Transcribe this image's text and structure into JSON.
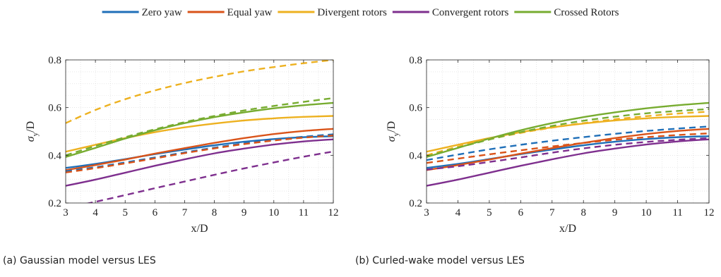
{
  "legend": {
    "placement": "top-center",
    "items": [
      {
        "label": "Zero yaw",
        "color": "#1f6fb8"
      },
      {
        "label": "Equal yaw",
        "color": "#d95319"
      },
      {
        "label": "Divergent rotors",
        "color": "#edb120"
      },
      {
        "label": "Convergent rotors",
        "color": "#7e2f8e"
      },
      {
        "label": "Crossed Rotors",
        "color": "#77ac30"
      }
    ]
  },
  "chart_data": [
    {
      "type": "line",
      "caption": "(a) Gaussian model versus LES",
      "xlabel": "x/D",
      "ylabel_main": "σ",
      "ylabel_sub": "y",
      "ylabel_suffix": "/D",
      "xlim": [
        3,
        12
      ],
      "ylim": [
        0.2,
        0.8
      ],
      "xticks": [
        3,
        4,
        5,
        6,
        7,
        8,
        9,
        10,
        11,
        12
      ],
      "yticks": [
        0.2,
        0.4,
        0.6,
        0.8
      ],
      "ytick_labels": [
        "0.2",
        "0.4",
        "0.6",
        "0.8"
      ],
      "grid": "minor-dotted",
      "x": [
        3,
        4,
        5,
        6,
        7,
        8,
        9,
        10,
        11,
        12
      ],
      "series": [
        {
          "legend": 0,
          "style": "solid",
          "values": [
            0.347,
            0.364,
            0.384,
            0.405,
            0.424,
            0.442,
            0.457,
            0.468,
            0.476,
            0.48
          ]
        },
        {
          "legend": 1,
          "style": "solid",
          "values": [
            0.338,
            0.359,
            0.382,
            0.407,
            0.43,
            0.452,
            0.472,
            0.489,
            0.502,
            0.511
          ]
        },
        {
          "legend": 2,
          "style": "solid",
          "values": [
            0.415,
            0.444,
            0.472,
            0.497,
            0.517,
            0.533,
            0.546,
            0.555,
            0.561,
            0.565
          ]
        },
        {
          "legend": 3,
          "style": "solid",
          "values": [
            0.272,
            0.298,
            0.327,
            0.356,
            0.383,
            0.408,
            0.428,
            0.445,
            0.458,
            0.467
          ]
        },
        {
          "legend": 4,
          "style": "solid",
          "values": [
            0.393,
            0.431,
            0.47,
            0.505,
            0.535,
            0.56,
            0.58,
            0.597,
            0.61,
            0.62
          ]
        },
        {
          "legend": 0,
          "style": "dashed",
          "values": [
            0.333,
            0.35,
            0.37,
            0.391,
            0.412,
            0.432,
            0.45,
            0.465,
            0.478,
            0.488
          ]
        },
        {
          "legend": 1,
          "style": "dashed",
          "values": [
            0.328,
            0.346,
            0.366,
            0.387,
            0.409,
            0.429,
            0.447,
            0.462,
            0.474,
            0.483
          ]
        },
        {
          "legend": 2,
          "style": "dashed",
          "values": [
            0.535,
            0.59,
            0.635,
            0.672,
            0.703,
            0.729,
            0.752,
            0.77,
            0.786,
            0.8
          ]
        },
        {
          "legend": 3,
          "style": "dashed",
          "values": [
            0.178,
            0.205,
            0.233,
            0.262,
            0.29,
            0.318,
            0.345,
            0.37,
            0.394,
            0.416
          ]
        },
        {
          "legend": 4,
          "style": "dashed",
          "values": [
            0.4,
            0.439,
            0.476,
            0.509,
            0.539,
            0.565,
            0.588,
            0.607,
            0.624,
            0.64
          ]
        }
      ]
    },
    {
      "type": "line",
      "caption": "(b) Curled-wake model versus LES",
      "xlabel": "x/D",
      "ylabel_main": "σ",
      "ylabel_sub": "y",
      "ylabel_suffix": "/D",
      "xlim": [
        3,
        12
      ],
      "ylim": [
        0.2,
        0.8
      ],
      "xticks": [
        3,
        4,
        5,
        6,
        7,
        8,
        9,
        10,
        11,
        12
      ],
      "yticks": [
        0.2,
        0.4,
        0.6,
        0.8
      ],
      "ytick_labels": [
        "0.2",
        "0.4",
        "0.6",
        "0.8"
      ],
      "grid": "minor-dotted",
      "x": [
        3,
        4,
        5,
        6,
        7,
        8,
        9,
        10,
        11,
        12
      ],
      "series": [
        {
          "legend": 0,
          "style": "solid",
          "values": [
            0.347,
            0.364,
            0.384,
            0.405,
            0.424,
            0.442,
            0.457,
            0.468,
            0.476,
            0.48
          ]
        },
        {
          "legend": 1,
          "style": "solid",
          "values": [
            0.338,
            0.359,
            0.382,
            0.407,
            0.43,
            0.452,
            0.472,
            0.489,
            0.502,
            0.511
          ]
        },
        {
          "legend": 2,
          "style": "solid",
          "values": [
            0.415,
            0.444,
            0.472,
            0.497,
            0.517,
            0.533,
            0.546,
            0.555,
            0.561,
            0.565
          ]
        },
        {
          "legend": 3,
          "style": "solid",
          "values": [
            0.272,
            0.298,
            0.327,
            0.356,
            0.383,
            0.408,
            0.428,
            0.445,
            0.458,
            0.467
          ]
        },
        {
          "legend": 4,
          "style": "solid",
          "values": [
            0.393,
            0.431,
            0.47,
            0.505,
            0.535,
            0.56,
            0.58,
            0.597,
            0.61,
            0.62
          ]
        },
        {
          "legend": 0,
          "style": "dashed",
          "values": [
            0.38,
            0.403,
            0.425,
            0.444,
            0.461,
            0.476,
            0.49,
            0.502,
            0.512,
            0.521
          ]
        },
        {
          "legend": 1,
          "style": "dashed",
          "values": [
            0.368,
            0.386,
            0.404,
            0.421,
            0.437,
            0.452,
            0.465,
            0.476,
            0.485,
            0.492
          ]
        },
        {
          "legend": 2,
          "style": "dashed",
          "values": [
            0.4,
            0.436,
            0.467,
            0.494,
            0.516,
            0.535,
            0.551,
            0.564,
            0.575,
            0.583
          ]
        },
        {
          "legend": 3,
          "style": "dashed",
          "values": [
            0.34,
            0.354,
            0.372,
            0.391,
            0.411,
            0.429,
            0.444,
            0.456,
            0.465,
            0.472
          ]
        },
        {
          "legend": 4,
          "style": "dashed",
          "values": [
            0.395,
            0.432,
            0.466,
            0.497,
            0.523,
            0.545,
            0.562,
            0.576,
            0.586,
            0.594
          ]
        }
      ]
    }
  ]
}
